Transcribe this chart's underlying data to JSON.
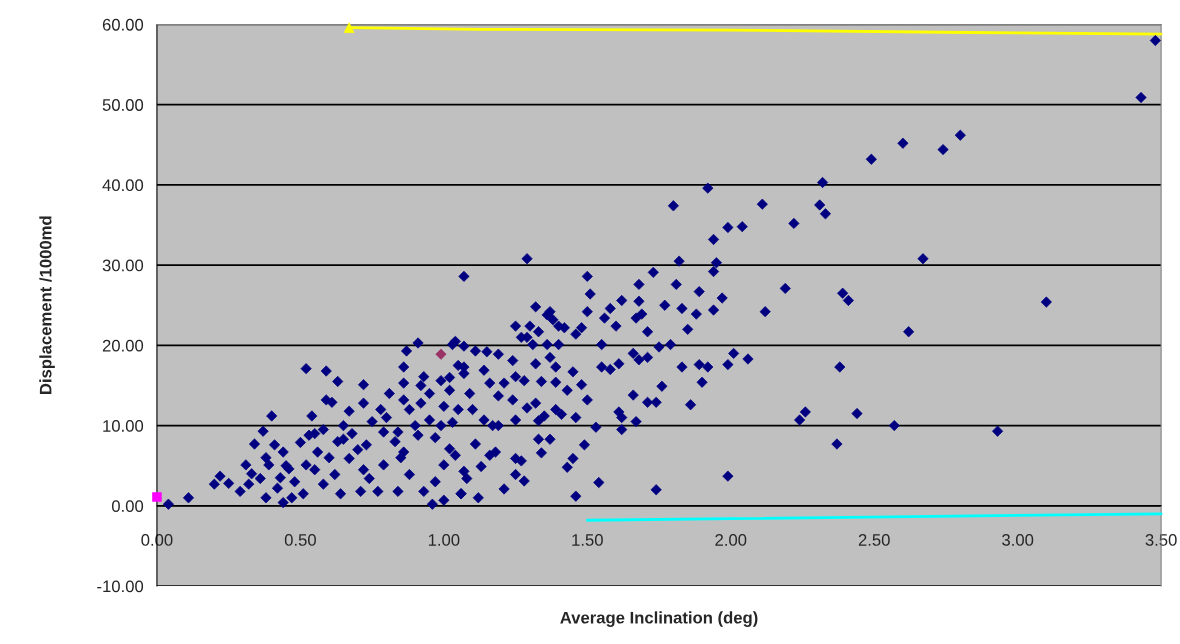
{
  "chart_data": {
    "type": "scatter",
    "xlabel": "Average Inclination (deg)",
    "ylabel": "Displacement /1000md",
    "xlim": [
      0,
      3.5
    ],
    "ylim": [
      -10,
      60
    ],
    "xticks": [
      {
        "value": 0,
        "label": "0.00"
      },
      {
        "value": 0.5,
        "label": "0.50"
      },
      {
        "value": 1,
        "label": "1.00"
      },
      {
        "value": 1.5,
        "label": "1.50"
      },
      {
        "value": 2,
        "label": "2.00"
      },
      {
        "value": 2.5,
        "label": "2.50"
      },
      {
        "value": 3,
        "label": "3.00"
      },
      {
        "value": 3.5,
        "label": "3.50"
      }
    ],
    "yticks": [
      {
        "value": -10,
        "label": "-10.00"
      },
      {
        "value": 0,
        "label": "0.00"
      },
      {
        "value": 10,
        "label": "10.00"
      },
      {
        "value": 20,
        "label": "20.00"
      },
      {
        "value": 30,
        "label": "30.00"
      },
      {
        "value": 40,
        "label": "40.00"
      },
      {
        "value": 50,
        "label": "50.00"
      },
      {
        "value": 60,
        "label": "60.00"
      }
    ],
    "grid": "y",
    "series": [
      {
        "color": "#000080",
        "marker": "diamond",
        "x": [
          3.48,
          3.43,
          2.6,
          2.8,
          2.74,
          2.49,
          2.32,
          2.31,
          2.33,
          2.67,
          2.39,
          2.41,
          3.1,
          2.62,
          2.38,
          2.26,
          2.24,
          2.44,
          2.57,
          2.93,
          2.37,
          1.92,
          1.8,
          2.11,
          2.22,
          1.99,
          2.04,
          1.94,
          1.29,
          1.82,
          1.95,
          1.94,
          1.5,
          1.73,
          1.68,
          1.81,
          2.19,
          1.89,
          1.51,
          2.12,
          1.97,
          1.62,
          1.68,
          1.77,
          1.83,
          1.94,
          1.88,
          1.58,
          1.32,
          1.5,
          1.67,
          1.69,
          1.37,
          1.56,
          1.6,
          1.25,
          1.85,
          1.71,
          1.48,
          1.46,
          1.3,
          1.42,
          1.79,
          1.55,
          2.01,
          1.99,
          2.06,
          1.75,
          1.66,
          1.68,
          1.71,
          1.83,
          1.89,
          1.92,
          1.9,
          1.58,
          1.61,
          1.55,
          1.76,
          1.66,
          1.71,
          1.74,
          1.86,
          1.45,
          1.48,
          1.43,
          1.5,
          1.39,
          1.46,
          1.41,
          1.61,
          1.62,
          1.67,
          1.53,
          1.62,
          1.49,
          1.45,
          1.43,
          1.54,
          1.74,
          1.99,
          1.46,
          1.34,
          1.33,
          1.37,
          1.25,
          1.27,
          1.25,
          1.28,
          1.21,
          1.18,
          1.16,
          1.13,
          1.06,
          1.12,
          1.08,
          1.11,
          1.17,
          1.14,
          1.19,
          1.25,
          1.29,
          1.32,
          1.35,
          1.33,
          1.39,
          1.28,
          1.24,
          1.34,
          1.32,
          1.39,
          1.37,
          1.36,
          1.4,
          1.31,
          1.29,
          1.33,
          1.38,
          1.36,
          1.4,
          1.27,
          1.19,
          1.24,
          1.25,
          1.21,
          1.19,
          1.15,
          1.11,
          1.07,
          1.03,
          1.07,
          1.14,
          1.09,
          1.05,
          1.03,
          1.1,
          1.16,
          1.04,
          1.07,
          1.07,
          0.04,
          0.11,
          0.22,
          0.2,
          0.25,
          0.31,
          0.34,
          0.37,
          0.4,
          0.41,
          0.29,
          0.32,
          0.38,
          0.44,
          0.47,
          0.42,
          0.36,
          0.39,
          0.44,
          0.46,
          0.5,
          0.52,
          0.59,
          0.63,
          0.59,
          0.61,
          0.54,
          0.58,
          0.53,
          0.56,
          0.52,
          0.51,
          0.58,
          0.62,
          0.64,
          0.67,
          0.65,
          0.67,
          0.72,
          0.72,
          0.71,
          0.74,
          0.77,
          0.79,
          0.73,
          0.79,
          0.78,
          0.81,
          0.86,
          0.86,
          0.87,
          0.91,
          0.93,
          0.84,
          0.88,
          0.86,
          0.84,
          0.91,
          0.93,
          0.96,
          1.0,
          0.97,
          1.0,
          1.02,
          1.06,
          0.99,
          0.95,
          1.0,
          1.02,
          0.99,
          1.04,
          1.07,
          0.92,
          0.86,
          0.45,
          0.48,
          0.55,
          0.6,
          0.63,
          0.68,
          0.7,
          0.75,
          0.8,
          0.83,
          0.88,
          0.9,
          0.95,
          0.97,
          1.02,
          1.05,
          0.92,
          0.85,
          0.55,
          0.65,
          0.72,
          0.38,
          0.33,
          0.43
        ],
        "values": [
          58.0,
          50.9,
          45.2,
          46.2,
          44.4,
          43.2,
          40.3,
          37.5,
          36.4,
          30.8,
          26.5,
          25.6,
          25.4,
          21.7,
          17.3,
          11.7,
          10.7,
          11.5,
          10.0,
          9.3,
          7.7,
          39.6,
          37.4,
          37.6,
          35.2,
          34.7,
          34.8,
          33.2,
          30.8,
          30.5,
          30.3,
          29.2,
          28.6,
          29.1,
          27.6,
          27.6,
          27.1,
          26.7,
          26.4,
          24.2,
          25.9,
          25.6,
          25.5,
          25.0,
          24.6,
          24.4,
          23.9,
          24.6,
          24.8,
          24.2,
          23.4,
          23.9,
          24.2,
          23.4,
          22.4,
          22.4,
          22.0,
          21.7,
          22.2,
          21.4,
          22.4,
          22.2,
          20.1,
          20.1,
          19.0,
          17.6,
          18.3,
          19.8,
          19.0,
          18.2,
          18.5,
          17.3,
          17.6,
          17.3,
          15.4,
          17.0,
          17.7,
          17.3,
          14.9,
          13.8,
          12.9,
          12.9,
          12.6,
          16.7,
          15.1,
          14.4,
          13.2,
          15.4,
          11.0,
          11.4,
          11.7,
          11.0,
          10.5,
          9.8,
          9.5,
          7.6,
          5.9,
          4.8,
          2.9,
          2.0,
          3.7,
          1.2,
          6.6,
          8.3,
          8.3,
          5.9,
          5.6,
          3.9,
          3.1,
          2.1,
          6.7,
          6.3,
          4.9,
          1.5,
          1.0,
          3.4,
          7.7,
          10.0,
          10.7,
          10.0,
          10.7,
          12.2,
          12.8,
          11.2,
          10.6,
          12.0,
          15.6,
          13.2,
          15.5,
          17.7,
          17.3,
          18.5,
          20.1,
          20.1,
          20.1,
          21.0,
          21.7,
          23.2,
          23.8,
          22.4,
          21.0,
          18.9,
          18.1,
          16.1,
          15.3,
          13.7,
          19.2,
          19.3,
          19.9,
          20.1,
          16.5,
          16.9,
          14.0,
          12.0,
          10.4,
          12.0,
          15.3,
          6.3,
          4.3,
          28.6,
          0.2,
          1.0,
          3.7,
          2.7,
          2.8,
          5.1,
          7.7,
          9.3,
          11.2,
          7.6,
          1.8,
          2.7,
          1.0,
          0.4,
          1.0,
          2.2,
          3.4,
          5.1,
          6.7,
          4.6,
          7.9,
          17.1,
          16.8,
          15.5,
          13.2,
          12.9,
          11.2,
          9.5,
          8.8,
          6.7,
          5.1,
          1.5,
          2.7,
          3.9,
          1.5,
          5.9,
          8.3,
          11.8,
          12.8,
          15.1,
          1.8,
          3.4,
          1.8,
          5.1,
          7.6,
          9.2,
          12.0,
          14.0,
          15.3,
          17.3,
          19.3,
          20.3,
          16.1,
          1.8,
          3.9,
          6.7,
          9.2,
          8.8,
          1.8,
          0.2,
          0.7,
          3.0,
          5.1,
          7.1,
          1.5,
          10.0,
          10.7,
          12.4,
          14.4,
          15.6,
          20.5,
          17.3,
          12.8,
          13.2,
          5.0,
          3.0,
          4.5,
          6.0,
          8.0,
          9.0,
          7.0,
          10.5,
          11.0,
          8.0,
          12.0,
          10.0,
          14.0,
          8.5,
          16.0,
          17.5,
          15.0,
          6.0,
          9.0,
          10.0,
          4.5,
          6.0,
          4.0,
          3.5
        ]
      },
      {
        "color": "#993366",
        "marker": "diamond",
        "x": [
          0.99
        ],
        "values": [
          18.9
        ]
      },
      {
        "color": "#ff00ff",
        "marker": "square",
        "x": [
          0.0
        ],
        "values": [
          1.1
        ]
      },
      {
        "type": "line",
        "color": "#ffff00",
        "marker": "none",
        "x": [
          0.67,
          1.12,
          2.0,
          2.83,
          3.5
        ],
        "values": [
          59.6,
          59.4,
          59.3,
          59.0,
          58.8
        ]
      },
      {
        "color": "#ffff00",
        "marker": "triangle",
        "x": [
          0.67
        ],
        "values": [
          59.6
        ]
      },
      {
        "type": "line",
        "color": "#00ffff",
        "marker": "none",
        "x": [
          1.5,
          2.0,
          3.5
        ],
        "values": [
          -1.8,
          -1.6,
          -1.0
        ]
      }
    ]
  }
}
